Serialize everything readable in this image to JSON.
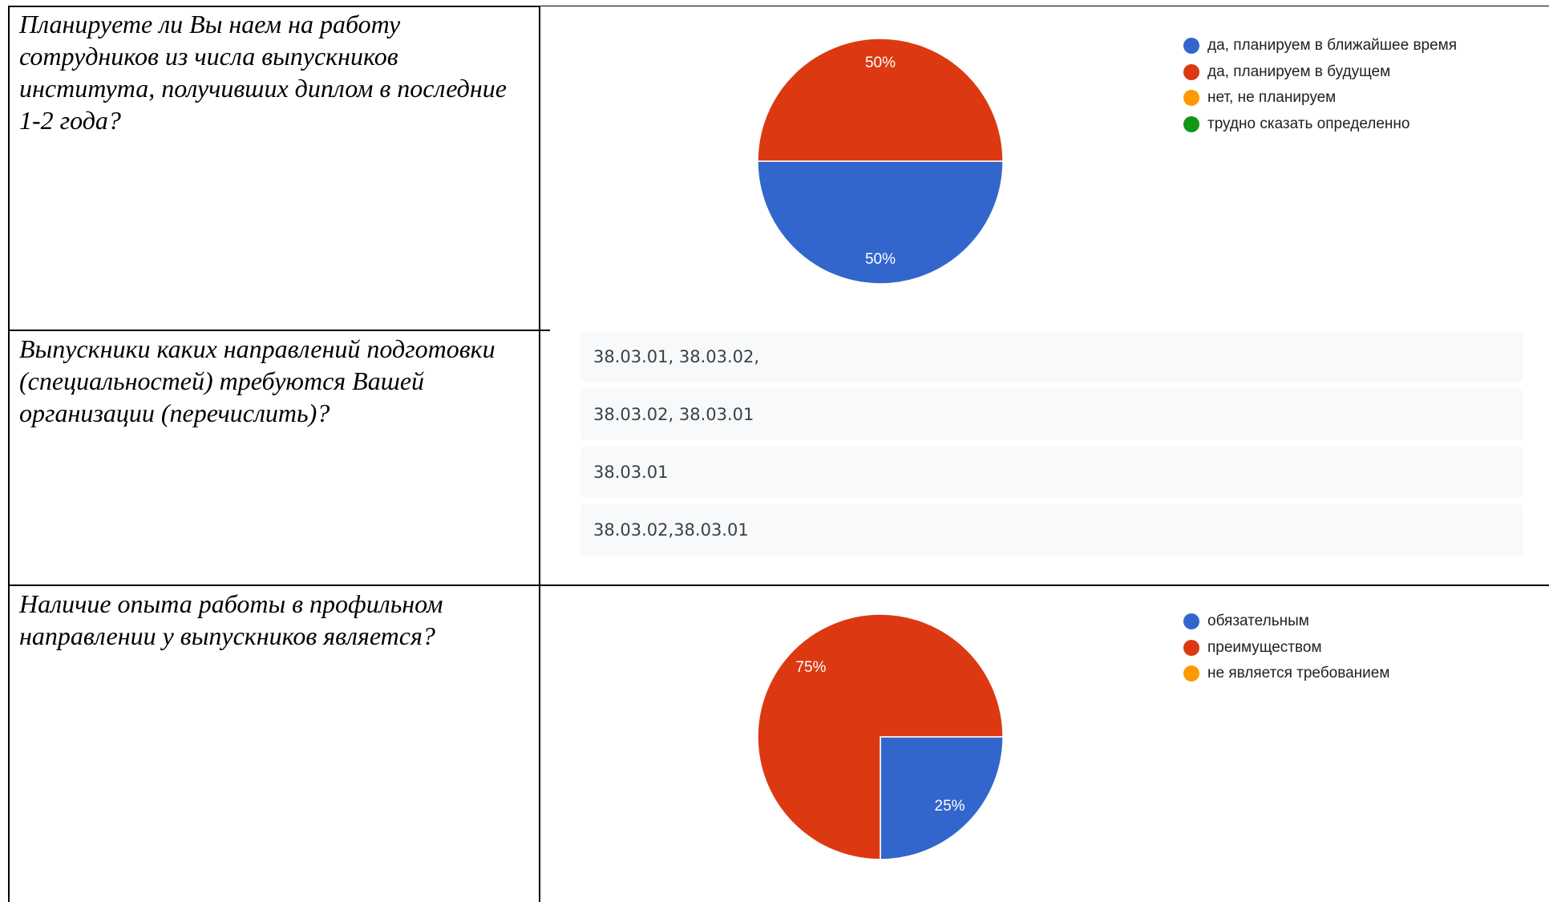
{
  "rows": [
    {
      "question": "Планируете ли Вы наем на работу сотрудников из числа выпускников института, получивших диплом в последние 1-2 года?"
    },
    {
      "question": "Выпускники каких направлений подготовки (специальностей) требуются Вашей организации (перечислить)?",
      "answers": [
        "38.03.01, 38.03.02,",
        "38.03.02, 38.03.01",
        "38.03.01",
        "38.03.02,38.03.01"
      ]
    },
    {
      "question": "Наличие опыта работы в профильном направлении у выпускников является?"
    }
  ],
  "chart_data": [
    {
      "type": "pie",
      "categories": [
        "да, планируем в ближайшее время",
        "да, планируем в будущем",
        "нет, не планируем",
        "трудно сказать определенно"
      ],
      "values": [
        50,
        50,
        0,
        0
      ],
      "value_labels": [
        "50%",
        "50%",
        "",
        ""
      ],
      "colors": [
        "#3366cc",
        "#dc3912",
        "#ff9900",
        "#109618"
      ],
      "legend_position": "right"
    },
    {
      "type": "pie",
      "categories": [
        "обязательным",
        "преимуществом",
        "не является требованием"
      ],
      "values": [
        25,
        75,
        0
      ],
      "value_labels": [
        "25%",
        "75%",
        ""
      ],
      "colors": [
        "#3366cc",
        "#dc3912",
        "#ff9900"
      ],
      "legend_position": "right"
    }
  ]
}
